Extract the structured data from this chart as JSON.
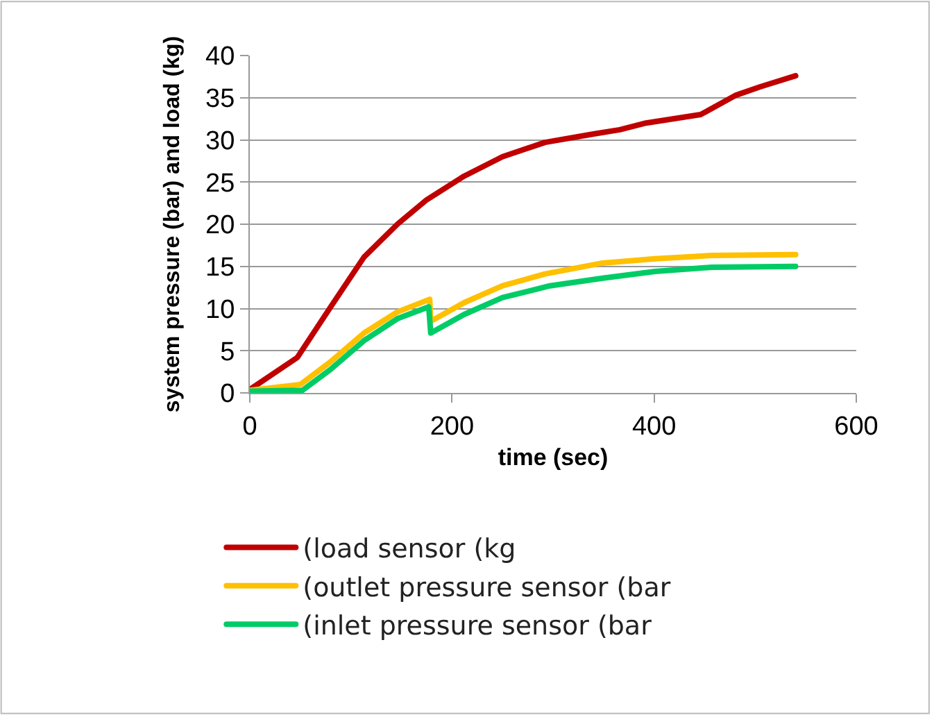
{
  "chart_data": {
    "type": "line",
    "xlabel": "time (sec)",
    "ylabel": "system pressure (bar) and load (kg)",
    "xlim": [
      0,
      600
    ],
    "xticks": [
      0,
      200,
      400,
      600
    ],
    "ylim": [
      0,
      40
    ],
    "yticks": [
      0,
      5,
      10,
      15,
      20,
      25,
      30,
      35,
      40
    ],
    "grid": "y",
    "legend": "bottom",
    "marker": "none",
    "line_style": "solid",
    "series": [
      {
        "name": "(load sensor (kg",
        "color": "#c00000",
        "x": [
          0,
          47,
          80,
          113,
          146,
          175,
          212,
          250,
          292,
          340,
          366,
          392,
          446,
          481,
          505,
          540
        ],
        "values": [
          0.4,
          4.2,
          10.2,
          16.1,
          20,
          22.9,
          25.7,
          28,
          29.7,
          30.7,
          31.2,
          32,
          33,
          35.3,
          36.3,
          37.6
        ]
      },
      {
        "name": "(outlet pressure sensor (bar",
        "color": "#ffc000",
        "x": [
          0,
          50,
          80,
          113,
          146,
          178,
          179,
          212,
          250,
          292,
          349,
          401,
          457,
          540
        ],
        "values": [
          0.3,
          1,
          3.7,
          7.1,
          9.6,
          11.1,
          8.5,
          10.7,
          12.7,
          14.1,
          15.4,
          15.9,
          16.3,
          16.4
        ]
      },
      {
        "name": "(inlet pressure sensor (bar",
        "color": "#00cc66",
        "x": [
          0,
          52,
          80,
          113,
          146,
          177,
          179,
          212,
          250,
          297,
          349,
          401,
          457,
          540
        ],
        "values": [
          0.2,
          0.3,
          2.8,
          6.2,
          8.8,
          10.2,
          7.1,
          9.3,
          11.3,
          12.7,
          13.6,
          14.4,
          14.9,
          15
        ]
      }
    ]
  }
}
